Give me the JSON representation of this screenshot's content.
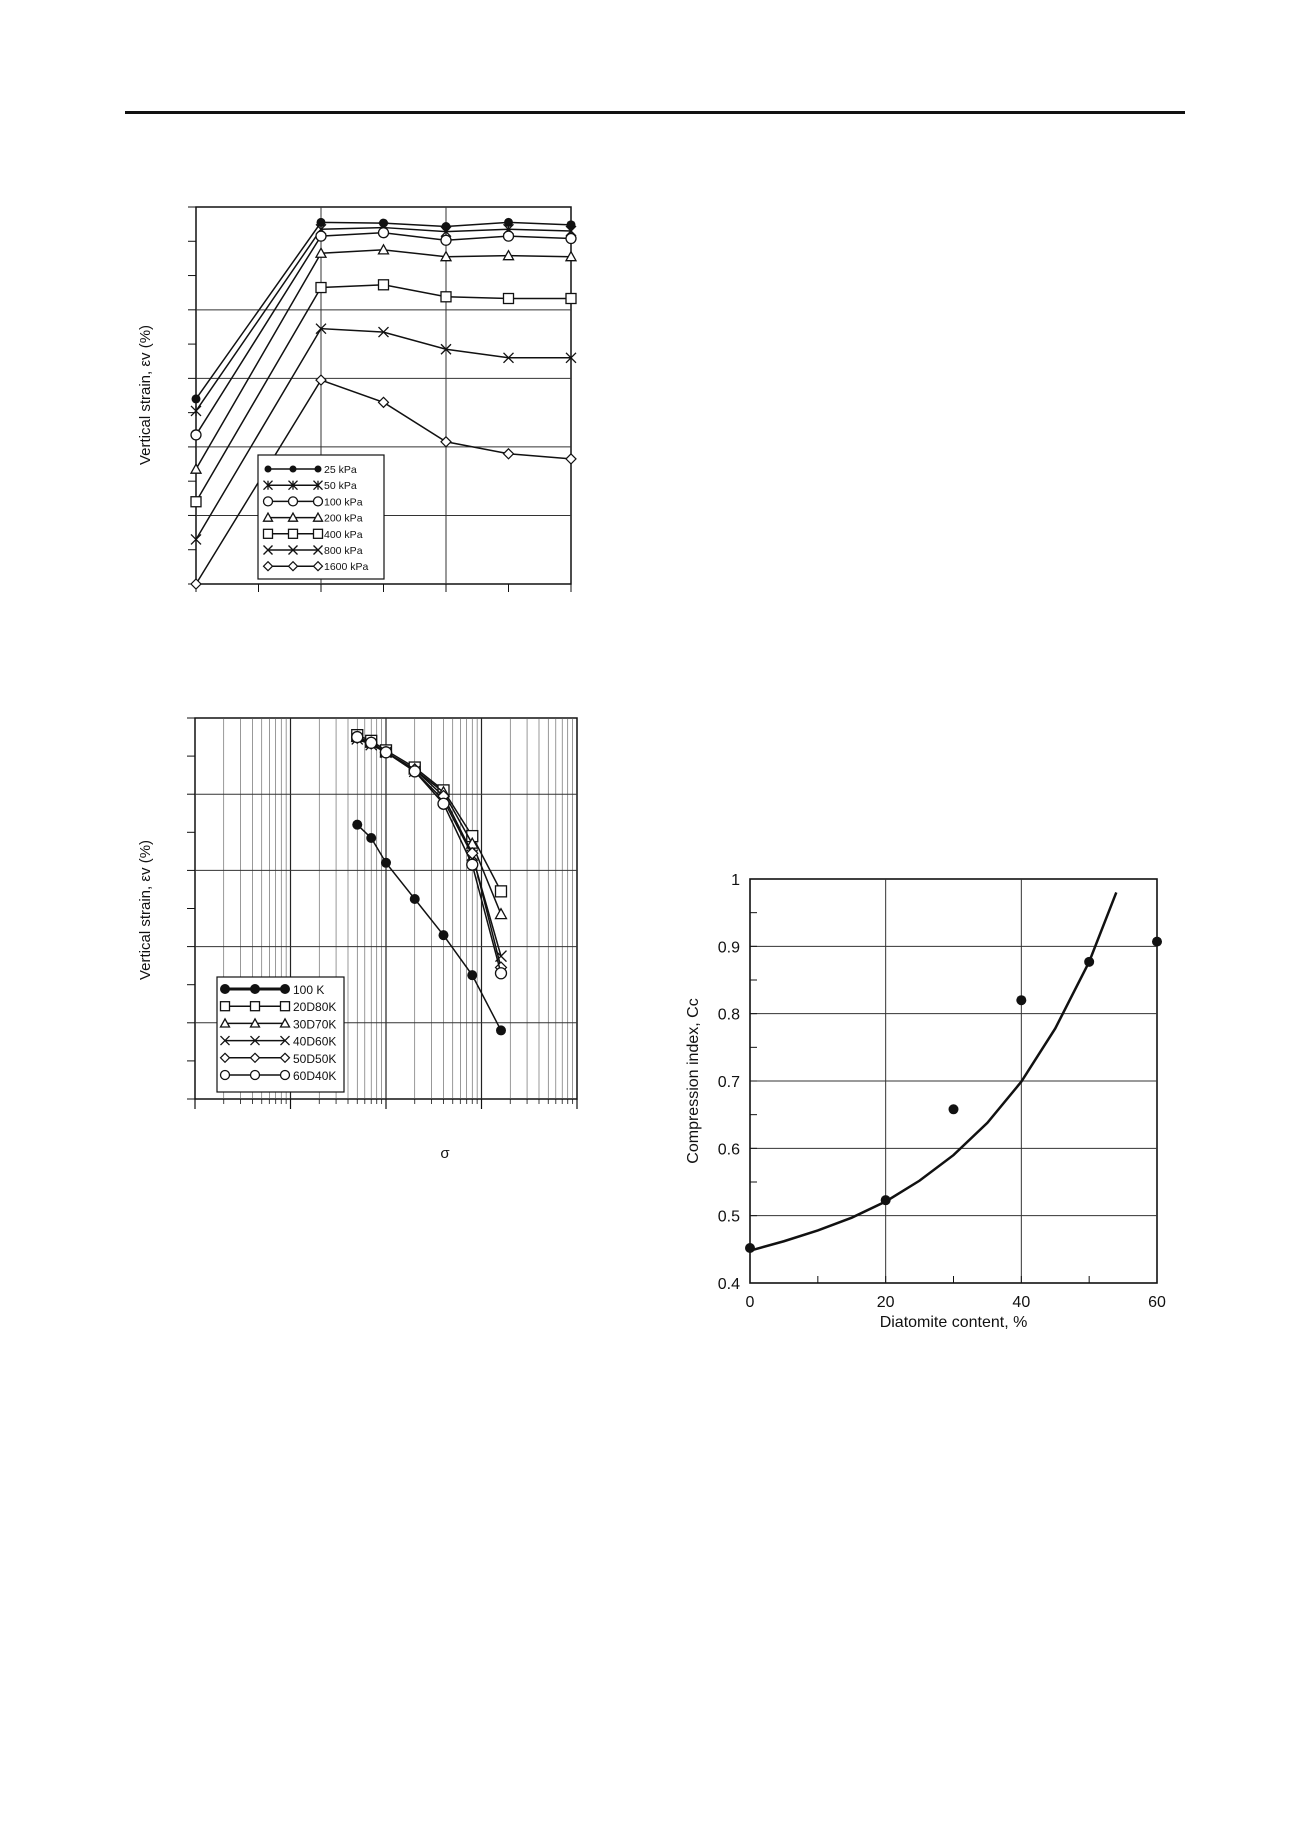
{
  "chart_data": [
    {
      "type": "line",
      "ylabel": "Vertical strain, εv (%)",
      "x": [
        0,
        20,
        30,
        40,
        50,
        60
      ],
      "legend_position": "bottom-left",
      "grid": true,
      "series": [
        {
          "name": "25 kPa",
          "marker": "dot",
          "values": [
            44,
            95.5,
            95.3,
            94.3,
            95.5,
            94.8
          ]
        },
        {
          "name": "50 kPa",
          "marker": "asterisk",
          "values": [
            40.5,
            93.5,
            94,
            92.8,
            93.5,
            93
          ]
        },
        {
          "name": "100 kPa",
          "marker": "circle",
          "values": [
            33.5,
            91.5,
            92.5,
            90.3,
            91.5,
            90.8
          ]
        },
        {
          "name": "200 kPa",
          "marker": "triangle",
          "values": [
            23.5,
            86.5,
            87.5,
            85.5,
            85.8,
            85.5
          ]
        },
        {
          "name": "400 kPa",
          "marker": "square",
          "values": [
            14,
            76.5,
            77.3,
            73.8,
            73.3,
            73.3
          ]
        },
        {
          "name": "800 kPa",
          "marker": "x",
          "values": [
            3,
            64.5,
            63.5,
            58.5,
            56,
            56
          ]
        },
        {
          "name": "1600 kPa",
          "marker": "diamond",
          "values": [
            -10,
            49.5,
            43,
            31.5,
            28,
            26.5
          ]
        }
      ]
    },
    {
      "type": "line",
      "ylabel": "Vertical strain, εv (%)",
      "xlabel": "σ",
      "x_scale": "log",
      "legend_position": "bottom-left",
      "grid": true,
      "series": [
        {
          "name": "100 K",
          "marker": "dot",
          "x": [
            50,
            70,
            100,
            200,
            400,
            800,
            1600
          ],
          "values": [
            72,
            68.5,
            62,
            52.5,
            43,
            32.5,
            18
          ]
        },
        {
          "name": "20D80K",
          "marker": "square",
          "x": [
            50,
            70,
            100,
            200,
            400,
            800,
            1600
          ],
          "values": [
            95.5,
            94,
            91.5,
            87,
            81,
            69,
            54.5
          ]
        },
        {
          "name": "30D70K",
          "marker": "triangle",
          "x": [
            50,
            70,
            100,
            200,
            400,
            800,
            1600
          ],
          "values": [
            95,
            93.5,
            91,
            86.5,
            80.5,
            67,
            48.5
          ]
        },
        {
          "name": "40D60K",
          "marker": "x",
          "x": [
            50,
            70,
            100,
            200,
            400,
            800,
            1600
          ],
          "values": [
            94.5,
            93,
            91,
            86,
            78.5,
            64,
            37.5
          ]
        },
        {
          "name": "50D50K",
          "marker": "diamond",
          "x": [
            50,
            70,
            100,
            200,
            400,
            800,
            1600
          ],
          "values": [
            94.8,
            93.3,
            91,
            86.5,
            79.5,
            64.5,
            34.5
          ]
        },
        {
          "name": "60D40K",
          "marker": "circle",
          "x": [
            50,
            70,
            100,
            200,
            400,
            800,
            1600
          ],
          "values": [
            95,
            93.5,
            91,
            86,
            77.5,
            61.5,
            33
          ]
        }
      ]
    },
    {
      "type": "scatter",
      "xlabel": "Diatomite content, %",
      "ylabel": "Compression index, Cc",
      "xlim": [
        0,
        60
      ],
      "ylim": [
        0.4,
        1
      ],
      "xticks": [
        "0",
        "20",
        "40",
        "60"
      ],
      "yticks": [
        "0.4",
        "0.5",
        "0.6",
        "0.7",
        "0.8",
        "0.9",
        "1"
      ],
      "grid": true,
      "points": {
        "x": [
          0,
          20,
          30,
          40,
          50,
          60
        ],
        "y": [
          0.452,
          0.523,
          0.658,
          0.82,
          0.877,
          0.907
        ]
      },
      "fit_curve": {
        "x": [
          0,
          5,
          10,
          15,
          20,
          25,
          30,
          35,
          40,
          45,
          50,
          54
        ],
        "y": [
          0.448,
          0.462,
          0.478,
          0.497,
          0.521,
          0.552,
          0.59,
          0.638,
          0.699,
          0.778,
          0.877,
          0.98
        ]
      }
    }
  ]
}
